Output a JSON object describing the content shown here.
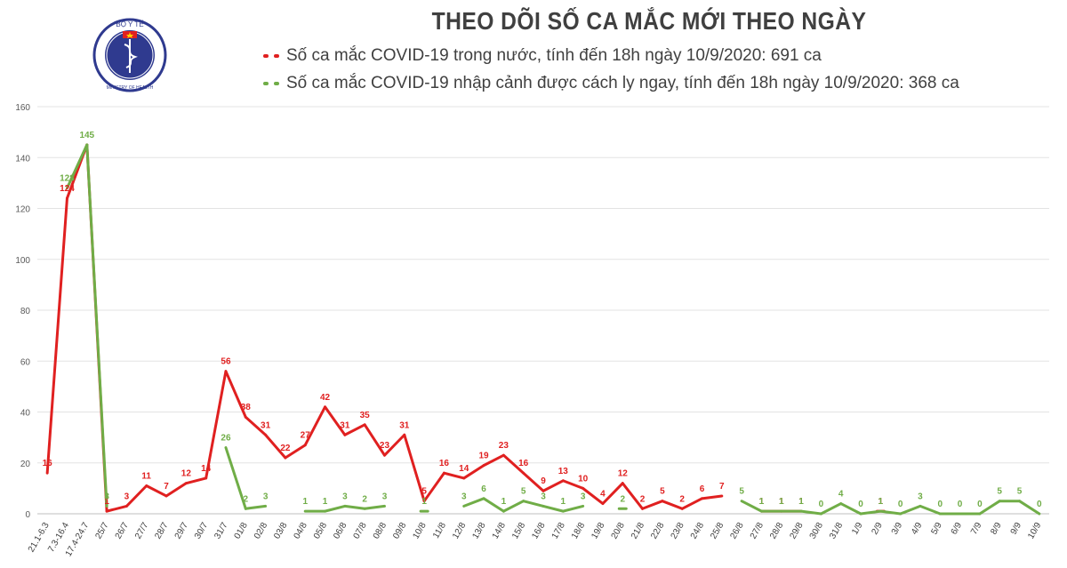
{
  "chart_data": {
    "type": "line",
    "title": "THEO DÕI SỐ CA MẮC MỚI THEO NGÀY",
    "ylim": [
      0,
      160
    ],
    "yticks": [
      0,
      20,
      40,
      60,
      80,
      100,
      120,
      140,
      160
    ],
    "grid": true,
    "legend_position": "top",
    "categories": [
      "21.1-6.3",
      "7.3-16.4",
      "17.4-24.7",
      "25/7",
      "26/7",
      "27/7",
      "28/7",
      "29/7",
      "30/7",
      "31/7",
      "01/8",
      "02/8",
      "03/8",
      "04/8",
      "05/8",
      "06/8",
      "07/8",
      "08/8",
      "09/8",
      "10/8",
      "11/8",
      "12/8",
      "13/8",
      "14/8",
      "15/8",
      "16/8",
      "17/8",
      "18/8",
      "19/8",
      "20/8",
      "21/8",
      "22/8",
      "23/8",
      "24/8",
      "25/8",
      "26/8",
      "27/8",
      "28/8",
      "29/8",
      "30/8",
      "31/8",
      "1/9",
      "2/9",
      "3/9",
      "4/9",
      "5/9",
      "6/9",
      "7/9",
      "8/9",
      "9/9",
      "10/9"
    ],
    "series": [
      {
        "name": "Số ca mắc COVID-19 trong nước, tính đến 18h ngày 10/9/2020: 691 ca",
        "color": "#e02020",
        "values": [
          16,
          124,
          145,
          1,
          3,
          11,
          7,
          12,
          14,
          56,
          38,
          31,
          22,
          27,
          42,
          31,
          35,
          23,
          31,
          5,
          16,
          14,
          19,
          23,
          16,
          9,
          13,
          10,
          4,
          12,
          2,
          5,
          2,
          6,
          7,
          null,
          1,
          1,
          1,
          null,
          null,
          null,
          1,
          null,
          null,
          null,
          null,
          null,
          null,
          null,
          null
        ],
        "labels": [
          "16",
          "124",
          null,
          "1",
          "3",
          "11",
          "7",
          "12",
          "14",
          "56",
          "38",
          "31",
          "22",
          "27",
          "42",
          "31",
          "35",
          "23",
          "31",
          "5",
          "16",
          "14",
          "19",
          "23",
          "16",
          "9",
          "13",
          "10",
          "4",
          "12",
          "2",
          "5",
          "2",
          "6",
          "7",
          null,
          "1",
          "1",
          "1",
          null,
          null,
          null,
          "1",
          null,
          null,
          null,
          null,
          null,
          null,
          null,
          null
        ]
      },
      {
        "name": "Số ca mắc COVID-19 nhập cảnh được cách ly ngay, tính đến 18h ngày 10/9/2020: 368 ca",
        "color": "#70ad47",
        "values": [
          null,
          128,
          145,
          3,
          null,
          null,
          null,
          null,
          null,
          26,
          2,
          3,
          null,
          1,
          1,
          3,
          2,
          3,
          null,
          1,
          null,
          3,
          6,
          1,
          5,
          3,
          1,
          3,
          null,
          2,
          null,
          null,
          null,
          null,
          null,
          5,
          1,
          1,
          1,
          0,
          4,
          0,
          1,
          0,
          3,
          0,
          0,
          0,
          5,
          5,
          0
        ],
        "labels": [
          null,
          "128",
          "145",
          "3",
          null,
          null,
          null,
          null,
          null,
          "26",
          "2",
          "3",
          null,
          "1",
          "1",
          "3",
          "2",
          "3",
          null,
          "1",
          null,
          "3",
          "6",
          "1",
          "5",
          "3",
          "1",
          "3",
          null,
          "2",
          null,
          null,
          null,
          null,
          null,
          "5",
          "1",
          "1",
          "1",
          "0",
          "4",
          "0",
          "1",
          "0",
          "3",
          "0",
          "0",
          "0",
          "5",
          "5",
          "0"
        ]
      }
    ]
  },
  "logo": {
    "text_top": "BỘ Y TẾ",
    "text_bottom": "MINISTRY OF HEALTH"
  }
}
